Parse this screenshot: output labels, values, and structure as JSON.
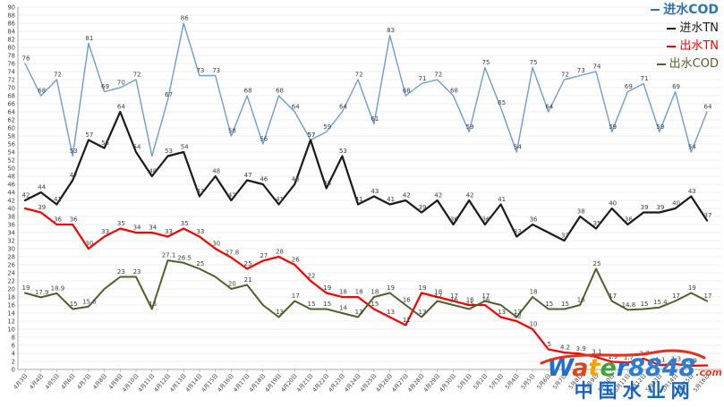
{
  "chart_data": {
    "type": "line",
    "title": "",
    "xlabel": "",
    "ylabel": "",
    "y_axis": {
      "min": 0,
      "max": 90,
      "step": 2
    },
    "grid": true,
    "grid_color": "#d9d9d9",
    "axis_color": "#a6a6a6",
    "tick_text_color": "#404040",
    "data_label_color": "#3f3f3f",
    "x_labels": [
      "4月3日",
      "4月4日",
      "4月5日",
      "4月6日",
      "4月7日",
      "4月8日",
      "4月9日",
      "4月10日",
      "4月11日",
      "4月12日",
      "4月13日",
      "4月14日",
      "4月15日",
      "4月16日",
      "4月17日",
      "4月18日",
      "4月19日",
      "4月20日",
      "4月21日",
      "4月22日",
      "4月23日",
      "4月24日",
      "4月25日",
      "4月26日",
      "4月27日",
      "4月28日",
      "4月29日",
      "4月30日",
      "5月1日",
      "5月2日",
      "5月3日",
      "5月4日",
      "5月5日",
      "5月6日",
      "5月7日",
      "5月8日",
      "5月9日",
      "5月10日",
      "5月11日",
      "5月12日",
      "5月13日",
      "5月14日",
      "5月15日",
      "5月16日"
    ],
    "series": [
      {
        "name": "进水COD",
        "color": "#6e9cd2",
        "width": 1.4,
        "values": [
          76,
          68,
          72,
          53,
          81,
          69,
          70,
          72,
          53,
          67,
          86,
          73,
          73,
          58,
          68,
          56,
          68,
          64,
          57,
          59,
          64,
          72,
          61,
          83,
          68,
          71,
          72,
          68,
          59,
          75,
          65,
          54,
          75,
          64,
          72,
          73,
          74,
          59,
          69,
          71,
          59,
          69,
          54,
          64
        ],
        "labels": [
          "76",
          "68",
          "72",
          "53",
          "81",
          "69",
          "70",
          "72",
          "",
          "67",
          "86",
          "73",
          "73",
          "58",
          "68",
          "56",
          "68",
          "64",
          "57",
          "59",
          "64",
          "72",
          "61",
          "83",
          "68",
          "71",
          "72",
          "68",
          "59",
          "75",
          "65",
          "54",
          "75",
          "64",
          "72",
          "73",
          "74",
          "59",
          "69",
          "71",
          "59",
          "69",
          "54",
          "64"
        ]
      },
      {
        "name": "进水TN",
        "color": "#1a1a1a",
        "width": 2.2,
        "values": [
          42,
          44,
          41,
          47,
          57,
          55,
          64,
          54,
          48,
          53,
          54,
          43,
          48,
          42,
          47,
          46,
          41,
          46,
          57,
          45,
          53,
          41,
          43,
          41,
          42,
          39,
          42,
          36,
          42,
          36,
          41,
          33,
          36,
          34,
          32,
          38,
          35,
          40,
          36,
          39,
          39,
          40,
          43,
          37
        ],
        "labels": [
          "42",
          "44",
          "41",
          "47",
          "57",
          "55",
          "64",
          "54",
          "48",
          "53",
          "54",
          "43",
          "48",
          "42",
          "47",
          "46",
          "41",
          "46",
          "57",
          "45",
          "53",
          "41",
          "43",
          "41",
          "42",
          "39",
          "42",
          "36",
          "42",
          "36",
          "41",
          "33",
          "36",
          "",
          "32",
          "38",
          "35",
          "40",
          "36",
          "39",
          "39",
          "40",
          "43",
          "37"
        ]
      },
      {
        "name": "出水TN",
        "color": "#ff0000",
        "width": 2.2,
        "values": [
          40,
          39,
          36,
          36,
          30,
          33,
          35,
          34,
          34,
          33,
          35,
          33,
          30,
          27.8,
          25,
          27,
          28,
          26,
          22,
          19,
          18,
          18,
          15,
          13,
          11,
          19,
          18,
          17,
          16,
          16,
          13,
          12,
          10,
          5,
          4.2,
          3.9,
          3.1,
          1.9,
          1.7,
          2.7,
          1.1,
          1.3,
          0.9,
          1
        ],
        "labels": [
          "",
          "39",
          "36",
          "36",
          "30",
          "33",
          "35",
          "34",
          "34",
          "33",
          "35",
          "33",
          "30",
          "27.8",
          "25",
          "27",
          "28",
          "26",
          "22",
          "19",
          "18",
          "18",
          "15",
          "13",
          "11",
          "19",
          "18",
          "17",
          "16",
          "16",
          "13",
          "12",
          "10",
          "5",
          "4.2",
          "3.9",
          "3.1",
          "1.9",
          "1.7",
          "2.7",
          "1.1",
          "1.3",
          "0.9",
          ""
        ]
      },
      {
        "name": "出水COD",
        "color": "#4e6228",
        "width": 2.0,
        "values": [
          19,
          17.9,
          18.9,
          15,
          15.6,
          20,
          23,
          23,
          15,
          27.1,
          26.5,
          25,
          23,
          20,
          21,
          16,
          13,
          17,
          15,
          15,
          14,
          13,
          18,
          19,
          16,
          13,
          17,
          16,
          15,
          17,
          16,
          13,
          18,
          15,
          15,
          16,
          25,
          17,
          14.8,
          15,
          15.4,
          17,
          19,
          17
        ],
        "labels": [
          "19",
          "17.9",
          "18.9",
          "15",
          "15.6",
          "",
          "23",
          "23",
          "15",
          "27.1",
          "26.5",
          "25",
          "",
          "20",
          "21",
          "",
          "13",
          "17",
          "15",
          "15",
          "14",
          "13",
          "18",
          "19",
          "16",
          "13",
          "17",
          "16",
          "15",
          "17",
          "",
          "13",
          "18",
          "15",
          "15",
          "16",
          "25",
          "17",
          "14.8",
          "15",
          "15.4",
          "17",
          "19",
          "17"
        ]
      }
    ],
    "legend_position": "top-right"
  },
  "legend": {
    "items": [
      {
        "label": "进水COD",
        "color": "#2e74b5"
      },
      {
        "label": "进水TN",
        "color": "#1a1a1a"
      },
      {
        "label": "出水TN",
        "color": "#ff0000"
      },
      {
        "label": "出水COD",
        "color": "#4e6228"
      }
    ]
  },
  "watermark": {
    "brand": "Water8848",
    "brand_letter_colors": [
      "#1f6fd0",
      "#e8401c",
      "#f0a500",
      "#3fa03c",
      "#1f6fd0",
      "#2b7cd3",
      "#2b7cd3",
      "#2b7cd3",
      "#2b7cd3"
    ],
    "suffix": ".com",
    "suffix_color": "#e8401c",
    "cn_text": "中国水业网",
    "cn_color": "#1565c0",
    "swoosh_color": "#e53020"
  }
}
